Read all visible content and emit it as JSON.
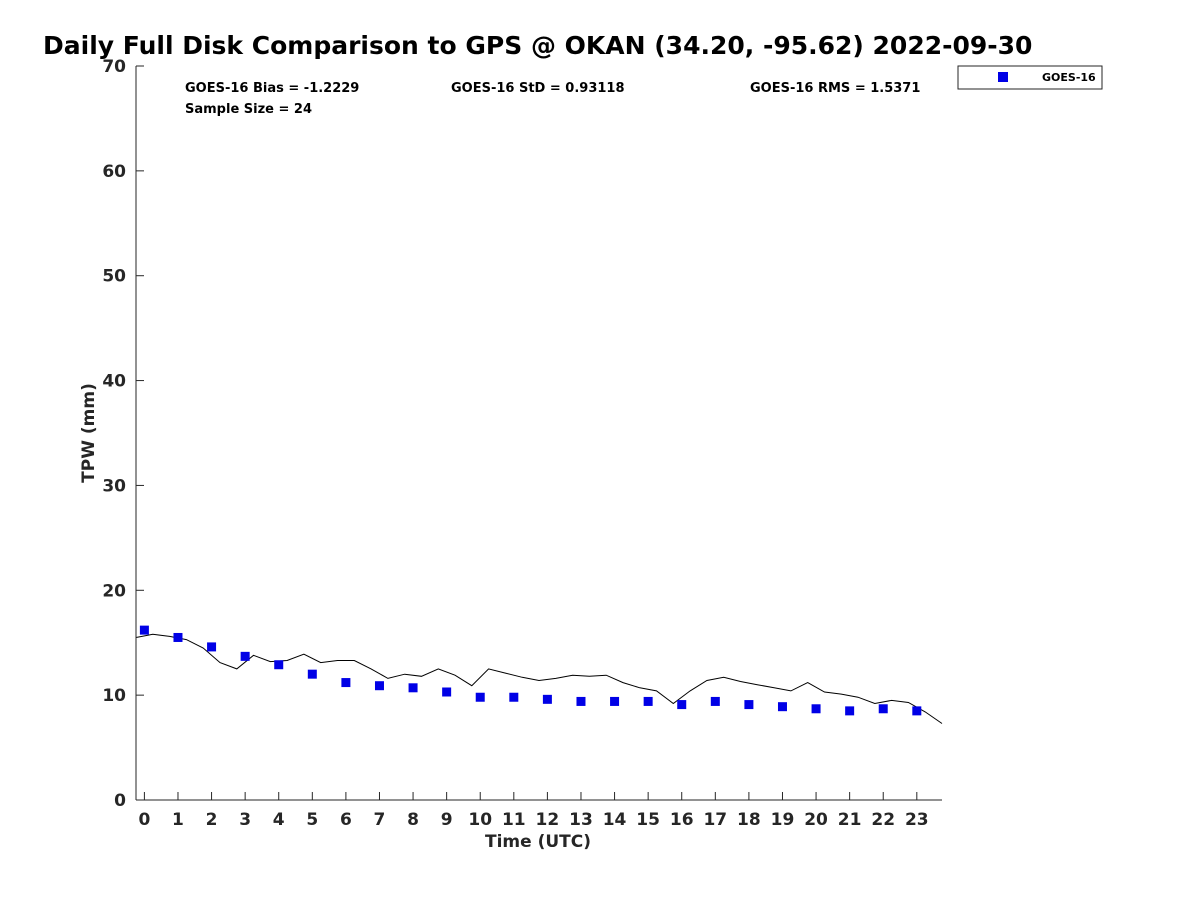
{
  "title": "Daily Full Disk Comparison to GPS @ OKAN (34.20, -95.62) 2022-09-30",
  "stats": {
    "bias": "GOES-16 Bias = -1.2229",
    "std": "GOES-16 StD = 0.93118",
    "rms": "GOES-16 RMS = 1.5371",
    "sample": "Sample Size = 24"
  },
  "legend": {
    "label": "GOES-16"
  },
  "colors": {
    "goes": "#0000e6",
    "gps_line": "#000000",
    "axis": "#262626"
  },
  "chart_data": {
    "type": "scatter",
    "title": "Daily Full Disk Comparison to GPS @ OKAN (34.20, -95.62) 2022-09-30",
    "xlabel": "Time (UTC)",
    "ylabel": "TPW (mm)",
    "xlim": [
      -0.25,
      23.75
    ],
    "ylim": [
      0,
      70
    ],
    "xticks": [
      0,
      1,
      2,
      3,
      4,
      5,
      6,
      7,
      8,
      9,
      10,
      11,
      12,
      13,
      14,
      15,
      16,
      17,
      18,
      19,
      20,
      21,
      22,
      23
    ],
    "yticks": [
      0,
      10,
      20,
      30,
      40,
      50,
      60,
      70
    ],
    "grid": false,
    "legend_position": "outside-top-right",
    "series": [
      {
        "name": "GOES-16",
        "kind": "markers",
        "x": [
          0,
          1,
          2,
          3,
          4,
          5,
          6,
          7,
          8,
          9,
          10,
          11,
          12,
          13,
          14,
          15,
          16,
          17,
          18,
          19,
          20,
          21,
          22,
          23
        ],
        "y": [
          16.2,
          15.5,
          14.6,
          13.7,
          12.9,
          12.0,
          11.2,
          10.9,
          10.7,
          10.3,
          9.8,
          9.8,
          9.6,
          9.4,
          9.4,
          9.4,
          9.1,
          9.4,
          9.1,
          8.9,
          8.7,
          8.5,
          8.7,
          8.5
        ]
      },
      {
        "kind": "line",
        "x": [
          -0.25,
          0.25,
          0.75,
          1.25,
          1.75,
          2.25,
          2.75,
          3.25,
          3.75,
          4.25,
          4.75,
          5.25,
          5.75,
          6.25,
          6.75,
          7.25,
          7.75,
          8.25,
          8.75,
          9.25,
          9.75,
          10.25,
          10.75,
          11.25,
          11.75,
          12.25,
          12.75,
          13.25,
          13.75,
          14.25,
          14.75,
          15.25,
          15.75,
          16.25,
          16.75,
          17.25,
          17.75,
          18.25,
          18.75,
          19.25,
          19.75,
          20.25,
          20.75,
          21.25,
          21.75,
          22.25,
          22.75,
          23.25,
          23.75
        ],
        "y": [
          15.5,
          15.8,
          15.6,
          15.3,
          14.5,
          13.1,
          12.5,
          13.8,
          13.2,
          13.3,
          13.9,
          13.1,
          13.3,
          13.3,
          12.5,
          11.6,
          12.0,
          11.8,
          12.5,
          11.9,
          10.9,
          12.5,
          12.1,
          11.7,
          11.4,
          11.6,
          11.9,
          11.8,
          11.9,
          11.2,
          10.7,
          10.4,
          9.2,
          10.4,
          11.4,
          11.7,
          11.3,
          11.0,
          10.7,
          10.4,
          11.2,
          10.3,
          10.1,
          9.8,
          9.2,
          9.5,
          9.3,
          8.4,
          7.3
        ]
      }
    ]
  }
}
